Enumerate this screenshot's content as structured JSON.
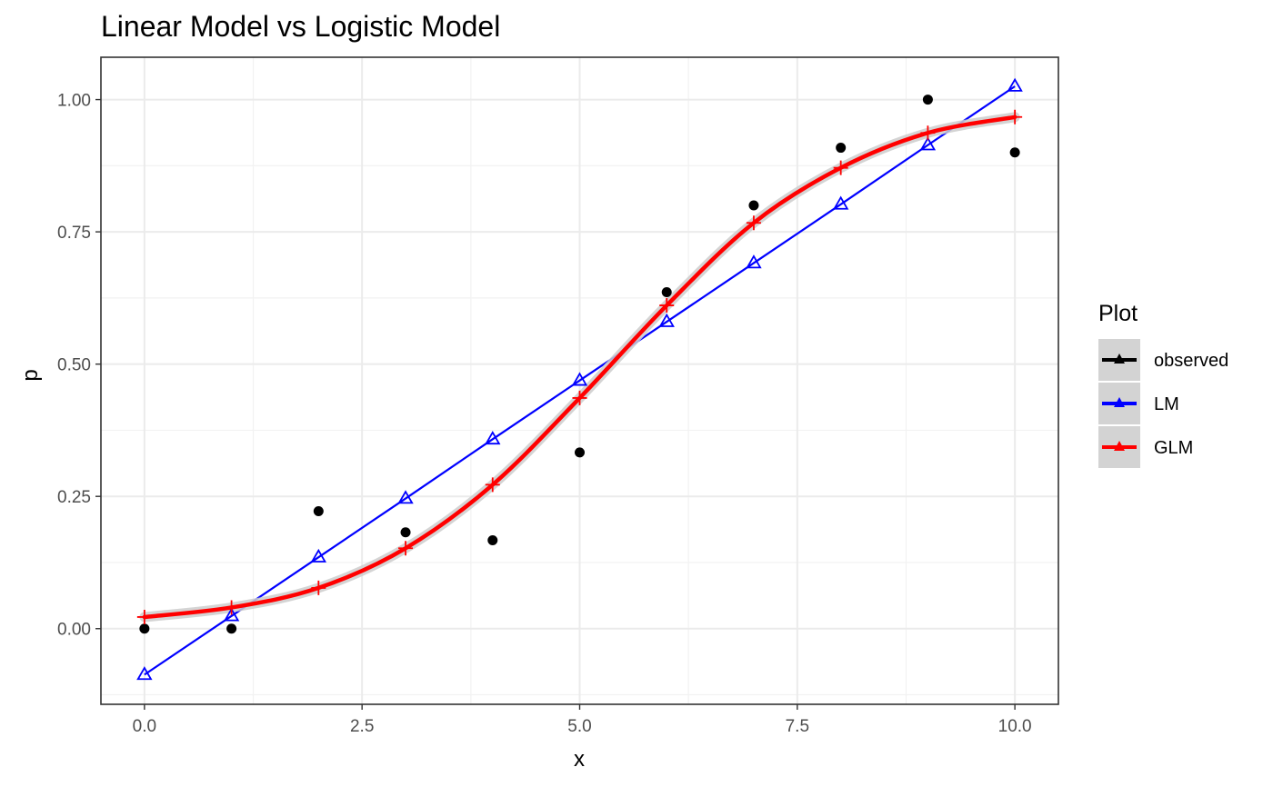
{
  "chart_data": {
    "type": "scatter",
    "title": "Linear Model vs Logistic Model",
    "xlabel": "x",
    "ylabel": "p",
    "xlim": [
      -0.5,
      10.5
    ],
    "ylim": [
      -0.143,
      1.08
    ],
    "x_ticks": [
      0,
      2.5,
      5,
      7.5,
      10
    ],
    "x_tick_labels": [
      "0.0",
      "2.5",
      "5.0",
      "7.5",
      "10.0"
    ],
    "y_ticks": [
      0,
      0.25,
      0.5,
      0.75,
      1
    ],
    "y_tick_labels": [
      "0.00",
      "0.25",
      "0.50",
      "0.75",
      "1.00"
    ],
    "grid": true,
    "legend": {
      "title": "Plot",
      "position": "right",
      "entries": [
        "observed",
        "LM",
        "GLM"
      ]
    },
    "series": [
      {
        "name": "observed",
        "style": "points",
        "color": "#000000",
        "marker": "dot",
        "x": [
          0,
          1,
          2,
          3,
          4,
          5,
          6,
          7,
          8,
          9,
          10
        ],
        "y": [
          0,
          0,
          0.222,
          0.182,
          0.167,
          0.333,
          0.636,
          0.8,
          0.909,
          1.0,
          0.9
        ]
      },
      {
        "name": "LM",
        "style": "line+points",
        "color": "#0000ff",
        "marker": "triangle-open",
        "x": [
          0,
          1,
          2,
          3,
          4,
          5,
          6,
          7,
          8,
          9,
          10
        ],
        "y": [
          -0.087,
          0.024,
          0.135,
          0.246,
          0.358,
          0.469,
          0.58,
          0.691,
          0.802,
          0.914,
          1.025
        ]
      },
      {
        "name": "GLM",
        "style": "smooth+points",
        "color": "#ff0000",
        "marker": "plus",
        "x": [
          0,
          1,
          2,
          3,
          4,
          5,
          6,
          7,
          8,
          9,
          10
        ],
        "y": [
          0.022,
          0.04,
          0.077,
          0.152,
          0.272,
          0.436,
          0.611,
          0.767,
          0.871,
          0.937,
          0.967
        ]
      }
    ]
  }
}
